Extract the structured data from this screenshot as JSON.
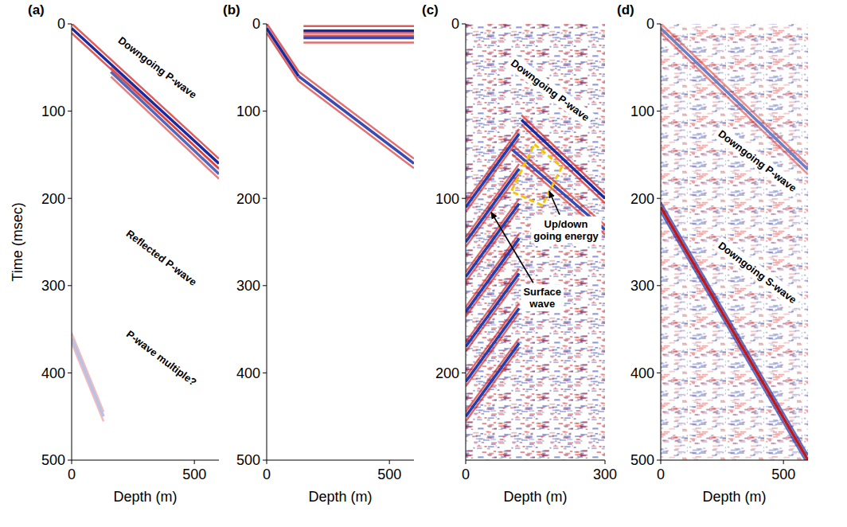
{
  "chart_data": [
    {
      "type": "seismic",
      "title": "(a)",
      "x_label": "Depth (m)",
      "y_label": "Time (msec)",
      "xlim": [
        0,
        600
      ],
      "xticks": [
        0,
        500
      ],
      "ylim": [
        0,
        500
      ],
      "yticks": [
        0,
        100,
        200,
        300,
        400,
        500
      ],
      "series": [
        {
          "color": "#1a2a9c",
          "x": [
            0,
            600
          ],
          "values": [
            5,
            160
          ]
        },
        {
          "color": "#5566b8",
          "x": [
            160,
            600
          ],
          "values": [
            55,
            172
          ]
        },
        {
          "color": "#b9c2e6",
          "x": [
            0,
            130
          ],
          "values": [
            360,
            450
          ]
        }
      ],
      "annotations": [
        {
          "text": "Downgoing P-wave",
          "x": 350,
          "y": 50
        },
        {
          "text": "Reflected P-wave",
          "x": 366,
          "y": 268
        },
        {
          "text": "P-wave multiple?",
          "x": 366,
          "y": 383
        }
      ]
    },
    {
      "type": "seismic",
      "title": "(b)",
      "x_label": "Depth (m)",
      "xlim": [
        0,
        600
      ],
      "xticks": [
        0,
        500
      ],
      "ylim": [
        0,
        500
      ],
      "yticks": [
        0,
        100,
        200,
        300,
        400,
        500
      ],
      "series": [
        {
          "color": "#1a2a9c",
          "x": [
            0,
            130
          ],
          "values": [
            5,
            60
          ]
        },
        {
          "color": "#3a4ab0",
          "x": [
            130,
            600
          ],
          "values": [
            60,
            160
          ]
        },
        {
          "color": "#1a2a9c",
          "x": [
            150,
            600
          ],
          "values": [
            8,
            8
          ]
        },
        {
          "color": "#3a4ab0",
          "x": [
            150,
            600
          ],
          "values": [
            16,
            16
          ]
        }
      ]
    },
    {
      "type": "seismic",
      "title": "(c)",
      "x_label": "Depth (m)",
      "xlim": [
        0,
        300
      ],
      "xticks": [
        0,
        300
      ],
      "ylim": [
        0,
        250
      ],
      "yticks": [
        0,
        100,
        200
      ],
      "series": [
        {
          "color": "#1a2a9c",
          "x": [
            120,
            300
          ],
          "values": [
            55,
            100
          ]
        },
        {
          "color": "#3a4ab0",
          "x": [
            100,
            300
          ],
          "values": [
            72,
            118
          ]
        },
        {
          "color": "#1f3fae",
          "x": [
            0,
            115
          ],
          "values": [
            105,
            63
          ]
        },
        {
          "color": "#1f3fae",
          "x": [
            0,
            115
          ],
          "values": [
            125,
            83
          ]
        },
        {
          "color": "#1f3fae",
          "x": [
            0,
            115
          ],
          "values": [
            145,
            103
          ]
        },
        {
          "color": "#1f3fae",
          "x": [
            0,
            115
          ],
          "values": [
            165,
            123
          ]
        },
        {
          "color": "#1f3fae",
          "x": [
            0,
            115
          ],
          "values": [
            185,
            143
          ]
        },
        {
          "color": "#1f3fae",
          "x": [
            0,
            115
          ],
          "values": [
            205,
            163
          ]
        },
        {
          "color": "#1f3fae",
          "x": [
            0,
            115
          ],
          "values": [
            225,
            183
          ]
        }
      ],
      "box": {
        "x": [
          148,
          207,
          165,
          98
        ],
        "y": [
          69,
          82,
          104,
          96
        ]
      },
      "annotations": [
        {
          "text": "Downgoing P-wave",
          "x": 182,
          "y": 38
        },
        {
          "text": "Up/down going energy",
          "x": 216,
          "y": 118,
          "arrow_to": [
            180,
            96
          ]
        },
        {
          "text": "Surface wave",
          "x": 165,
          "y": 157,
          "arrow_to": [
            55,
            108
          ]
        }
      ]
    },
    {
      "type": "seismic",
      "title": "(d)",
      "x_label": "Depth (m)",
      "xlim": [
        0,
        600
      ],
      "xticks": [
        0,
        500
      ],
      "ylim": [
        0,
        500
      ],
      "yticks": [
        0,
        100,
        200,
        300,
        400,
        500
      ],
      "series": [
        {
          "color": "#6f7fc4",
          "x": [
            0,
            600
          ],
          "values": [
            5,
            167
          ]
        },
        {
          "color": "#c01818",
          "x": [
            0,
            600
          ],
          "values": [
            210,
            500
          ]
        }
      ],
      "annotations": [
        {
          "text": "Downgoing P-wave",
          "x": 394,
          "y": 157
        },
        {
          "text": "Downgoing S-wave",
          "x": 394,
          "y": 285
        }
      ]
    }
  ]
}
